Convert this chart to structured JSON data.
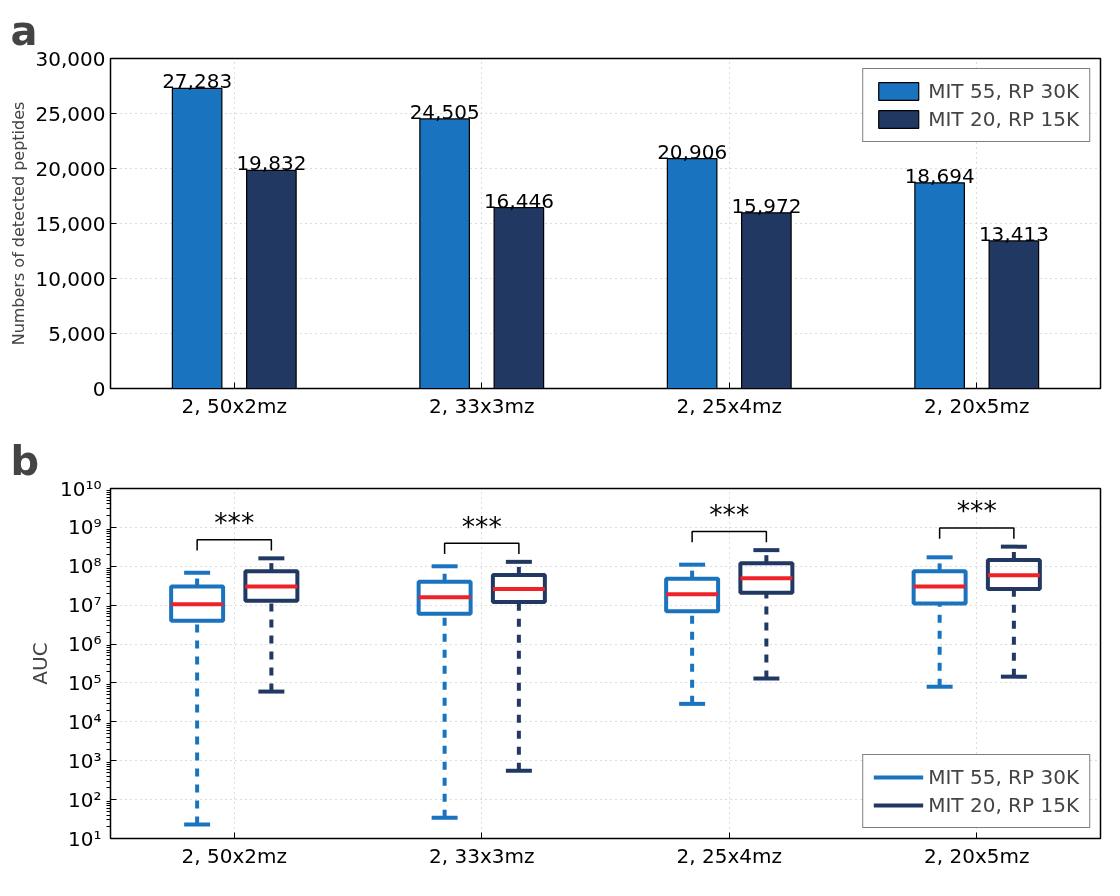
{
  "chart_data": [
    {
      "type": "bar",
      "title": "a",
      "ylabel": "Numbers of detected peptides",
      "categories": [
        "2, 50x2mz",
        "2, 33x3mz",
        "2, 25x4mz",
        "2, 20x5mz"
      ],
      "series": [
        {
          "name": "MIT 55, RP 30K",
          "color": "#1a73be",
          "values": [
            27283,
            24505,
            20906,
            18694
          ],
          "value_labels": [
            "27,283",
            "24,505",
            "20,906",
            "18,694"
          ]
        },
        {
          "name": "MIT 20, RP 15K",
          "color": "#213862",
          "values": [
            19832,
            16446,
            15972,
            13413
          ],
          "value_labels": [
            "19,832",
            "16,446",
            "15,972",
            "13,413"
          ]
        }
      ],
      "ylim": [
        0,
        30000
      ],
      "yticks": [
        {
          "value": 0,
          "label": "0"
        },
        {
          "value": 5000,
          "label": "5,000"
        },
        {
          "value": 10000,
          "label": "10,000"
        },
        {
          "value": 15000,
          "label": "15,000"
        },
        {
          "value": 20000,
          "label": "20,000"
        },
        {
          "value": 25000,
          "label": "25,000"
        },
        {
          "value": 30000,
          "label": "30,000"
        }
      ],
      "grid": true,
      "legend": "top right"
    },
    {
      "type": "box",
      "title": "b",
      "ylabel": "AUC",
      "categories": [
        "2, 50x2mz",
        "2, 33x3mz",
        "2, 25x4mz",
        "2, 20x5mz"
      ],
      "series": [
        {
          "name": "MIT 55, RP 30K",
          "color": "#1a73be",
          "boxes": [
            {
              "low": 23,
              "q1": 4000000,
              "median": 10500000,
              "q3": 30000000,
              "high": 68000000
            },
            {
              "low": 34,
              "q1": 6000000,
              "median": 16000000,
              "q3": 40000000,
              "high": 100000000
            },
            {
              "low": 29000,
              "q1": 7000000,
              "median": 19000000,
              "q3": 48000000,
              "high": 110000000
            },
            {
              "low": 80000,
              "q1": 11000000,
              "median": 30000000,
              "q3": 74000000,
              "high": 170000000
            }
          ]
        },
        {
          "name": "MIT 20, RP 15K",
          "color": "#213862",
          "boxes": [
            {
              "low": 60000,
              "q1": 13000000,
              "median": 30000000,
              "q3": 75000000,
              "high": 160000000
            },
            {
              "low": 550,
              "q1": 12000000,
              "median": 26000000,
              "q3": 60000000,
              "high": 130000000
            },
            {
              "low": 130000,
              "q1": 21000000,
              "median": 49000000,
              "q3": 120000000,
              "high": 260000000
            },
            {
              "low": 145000,
              "q1": 26000000,
              "median": 59000000,
              "q3": 145000000,
              "high": 320000000
            }
          ]
        }
      ],
      "log": true,
      "ylim": [
        10,
        10000000000
      ],
      "yticks": [
        {
          "value": 10,
          "label": "10¹"
        },
        {
          "value": 100,
          "label": "10²"
        },
        {
          "value": 1000,
          "label": "10³"
        },
        {
          "value": 10000,
          "label": "10⁴"
        },
        {
          "value": 100000,
          "label": "10⁵"
        },
        {
          "value": 1000000,
          "label": "10⁶"
        },
        {
          "value": 10000000,
          "label": "10⁷"
        },
        {
          "value": 100000000,
          "label": "10⁸"
        },
        {
          "value": 1000000000,
          "label": "10⁹"
        },
        {
          "value": 10000000000,
          "label": "10¹⁰"
        }
      ],
      "annotations": [
        "***",
        "***",
        "***",
        "***"
      ],
      "grid": true,
      "legend": "bottom right"
    }
  ]
}
